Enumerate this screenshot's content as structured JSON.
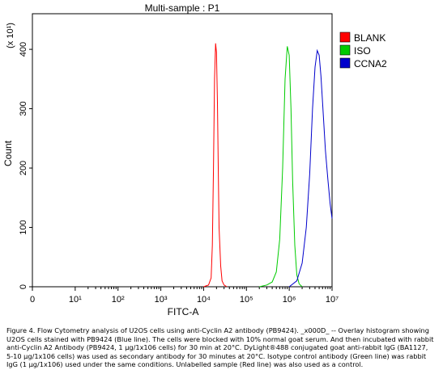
{
  "chart_data": {
    "type": "line",
    "title": "Multi-sample : P1",
    "xlabel": "FITC-A",
    "ylabel": "Count",
    "y_multiplier": "(x 10¹)",
    "x_scale": "log",
    "xlim_decades": [
      0,
      7
    ],
    "ylim": [
      0,
      460
    ],
    "x_ticks": [
      "0",
      "10¹",
      "10²",
      "10³",
      "10⁴",
      "10⁵",
      "10⁶",
      "10⁷"
    ],
    "y_ticks": [
      "0",
      "100",
      "200",
      "300",
      "400"
    ],
    "y_tick_values": [
      0,
      100,
      200,
      300,
      400
    ],
    "grid": false,
    "legend_position": "right",
    "series": [
      {
        "name": "BLANK",
        "color": "#ff0000",
        "x": [
          10000.0,
          13000.0,
          15000.0,
          16000.0,
          17000.0,
          18000.0,
          19000.0,
          20000.0,
          21000.0,
          22000.0,
          23000.0,
          25000.0,
          27000.0,
          30000.0,
          35000.0
        ],
        "y": [
          0,
          3,
          15,
          70,
          200,
          350,
          410,
          395,
          310,
          200,
          100,
          35,
          10,
          3,
          0
        ]
      },
      {
        "name": "ISO",
        "color": "#00cc00",
        "x": [
          200000.0,
          300000.0,
          400000.0,
          500000.0,
          600000.0,
          700000.0,
          800000.0,
          900000.0,
          1000000.0,
          1100000.0,
          1200000.0,
          1350000.0,
          1500000.0,
          1700000.0,
          2000000.0
        ],
        "y": [
          0,
          3,
          8,
          25,
          80,
          200,
          350,
          405,
          390,
          300,
          180,
          70,
          20,
          5,
          0
        ]
      },
      {
        "name": "CCNA2",
        "color": "#0000cc",
        "x": [
          1000000.0,
          1500000.0,
          2000000.0,
          2500000.0,
          3000000.0,
          3500000.0,
          4000000.0,
          4500000.0,
          5000000.0,
          5500000.0,
          6000000.0,
          7000000.0,
          8000000.0,
          9000000.0,
          10000000.0
        ],
        "y": [
          0,
          10,
          40,
          100,
          190,
          300,
          370,
          398,
          390,
          355,
          310,
          230,
          180,
          140,
          115
        ]
      }
    ]
  },
  "figure_caption": "Figure 4. Flow Cytometry analysis of U2OS cells using anti-Cyclin A2 antibody (PB9424). _x000D_ -- Overlay histogram showing U2OS cells stained with PB9424 (Blue line). The cells were blocked with 10% normal goat serum. And then incubated with rabbit anti-Cyclin A2 Antibody (PB9424, 1 μg/1x106 cells) for 30 min at 20°C. DyLight®488 conjugated goat anti-rabbit IgG (BA1127, 5-10 μg/1x106 cells) was used as secondary antibody for 30 minutes at 20°C. Isotype control antibody (Green line) was rabbit IgG (1 μg/1x106) used under the same conditions. Unlabelled sample (Red line) was also used as a control."
}
